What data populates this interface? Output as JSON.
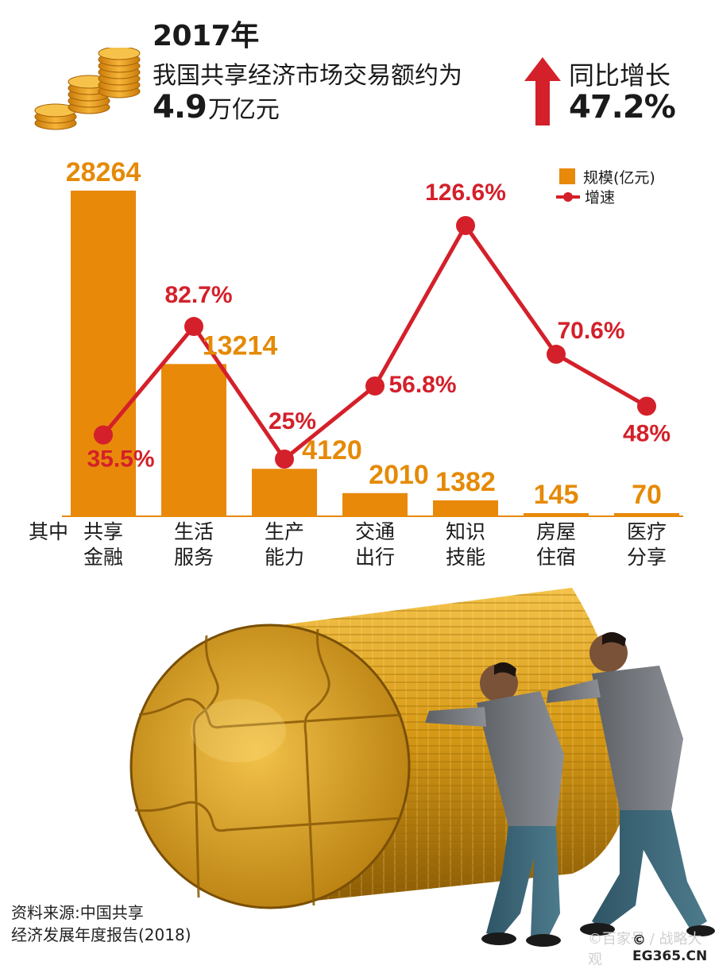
{
  "header": {
    "year": "2017年",
    "headline": "我国共享经济市场交易额约为",
    "amount_value": "4.9",
    "amount_unit": "万亿元",
    "growth_label": "同比增长",
    "growth_value": "47.2%"
  },
  "chart_data": {
    "type": "bar",
    "prefix_label": "其中",
    "categories": [
      [
        "共享",
        "金融"
      ],
      [
        "生活",
        "服务"
      ],
      [
        "生产",
        "能力"
      ],
      [
        "交通",
        "出行"
      ],
      [
        "知识",
        "技能"
      ],
      [
        "房屋",
        "住宿"
      ],
      [
        "医疗",
        "分享"
      ]
    ],
    "series": [
      {
        "name": "规模(亿元)",
        "type": "bar",
        "values": [
          28264,
          13214,
          4120,
          2010,
          1382,
          145,
          70
        ],
        "labels": [
          "28264",
          "13214",
          "4120",
          "2010",
          "1382",
          "145",
          "70"
        ]
      },
      {
        "name": "增速",
        "type": "line",
        "values": [
          35.5,
          82.7,
          25,
          56.8,
          126.6,
          70.6,
          48
        ],
        "labels": [
          "35.5%",
          "82.7%",
          "25%",
          "56.8%",
          "126.6%",
          "70.6%",
          "48%"
        ]
      }
    ],
    "legend_position": "top-right",
    "grid": false,
    "colors": {
      "bar": "#e8890a",
      "line": "#d4202a",
      "marker": "#d4202a"
    }
  },
  "illustration": {
    "subject": "puzzle-roll-of-gold-coins"
  },
  "footer": {
    "source_line1": "资料来源:中国共享",
    "source_line2": "经济发展年度报告(2018)",
    "watermark": "©百家号 / 战略大观",
    "credit": "© EG365.CN"
  }
}
